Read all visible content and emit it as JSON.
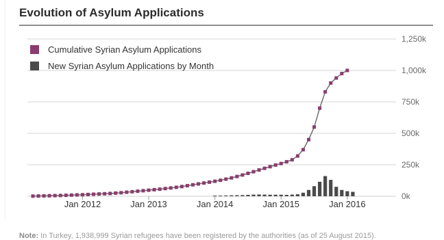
{
  "title": "Evolution of Asylum Applications",
  "note": {
    "label": "Note:",
    "text": "In Turkey, 1,938,999 Syrian refugees have been registered by the authorities (as of 25 August 2015)."
  },
  "colors": {
    "cumulative": "#8b3c6e",
    "monthly": "#4a4a4a",
    "grid": "#d4d4d4",
    "axis_text": "#6a6a6a",
    "tick_text": "#333333",
    "line": "#6e6e6e"
  },
  "chart_data": {
    "type": "bar",
    "title": "Evolution of Asylum Applications",
    "xlabel": "",
    "ylabel": "",
    "ylim": [
      0,
      1250000
    ],
    "yticks": [
      0,
      250000,
      500000,
      750000,
      1000000,
      1250000
    ],
    "ytick_labels": [
      "0k",
      "250k",
      "500k",
      "750k",
      "1,000k",
      "1,250k"
    ],
    "xticks": [
      "2012-01",
      "2013-01",
      "2014-01",
      "2015-01",
      "2016-01"
    ],
    "xtick_labels": [
      "Jan 2012",
      "Jan 2013",
      "Jan 2014",
      "Jan 2015",
      "Jan 2016"
    ],
    "grid": true,
    "legend_position": "top-left",
    "x": [
      "2011-04",
      "2011-05",
      "2011-06",
      "2011-07",
      "2011-08",
      "2011-09",
      "2011-10",
      "2011-11",
      "2011-12",
      "2012-01",
      "2012-02",
      "2012-03",
      "2012-04",
      "2012-05",
      "2012-06",
      "2012-07",
      "2012-08",
      "2012-09",
      "2012-10",
      "2012-11",
      "2012-12",
      "2013-01",
      "2013-02",
      "2013-03",
      "2013-04",
      "2013-05",
      "2013-06",
      "2013-07",
      "2013-08",
      "2013-09",
      "2013-10",
      "2013-11",
      "2013-12",
      "2014-01",
      "2014-02",
      "2014-03",
      "2014-04",
      "2014-05",
      "2014-06",
      "2014-07",
      "2014-08",
      "2014-09",
      "2014-10",
      "2014-11",
      "2014-12",
      "2015-01",
      "2015-02",
      "2015-03",
      "2015-04",
      "2015-05",
      "2015-06",
      "2015-07",
      "2015-08",
      "2015-09",
      "2015-10",
      "2015-11",
      "2015-12",
      "2016-01",
      "2016-02",
      "2016-03"
    ],
    "series": [
      {
        "name": "Cumulative Syrian Asylum Applications",
        "type": "line",
        "values": [
          1000,
          2000,
          3000,
          4000,
          5000,
          6000,
          7500,
          9000,
          10500,
          12000,
          14000,
          16000,
          18000,
          20000,
          22000,
          25000,
          28000,
          32000,
          36000,
          40000,
          44000,
          48000,
          52000,
          56000,
          61000,
          66000,
          71000,
          77000,
          84000,
          91000,
          98000,
          105000,
          112000,
          119000,
          127000,
          136000,
          146000,
          157000,
          169000,
          182000,
          195000,
          209000,
          222000,
          235000,
          248000,
          260000,
          274000,
          290000,
          320000,
          370000,
          450000,
          550000,
          700000,
          830000,
          900000,
          940000,
          975000,
          1000000,
          null,
          null
        ]
      },
      {
        "name": "New Syrian Asylum Applications by Month",
        "type": "bar",
        "values": [
          null,
          null,
          null,
          null,
          null,
          null,
          null,
          null,
          null,
          null,
          null,
          null,
          null,
          null,
          null,
          null,
          null,
          null,
          null,
          null,
          null,
          null,
          null,
          null,
          null,
          null,
          null,
          null,
          null,
          null,
          null,
          null,
          null,
          5000,
          5000,
          6000,
          7000,
          8000,
          9000,
          11000,
          13000,
          14000,
          13000,
          12000,
          12000,
          12000,
          11000,
          13000,
          16000,
          28000,
          50000,
          80000,
          115000,
          160000,
          130000,
          75000,
          50000,
          40000,
          35000,
          null
        ]
      }
    ]
  }
}
